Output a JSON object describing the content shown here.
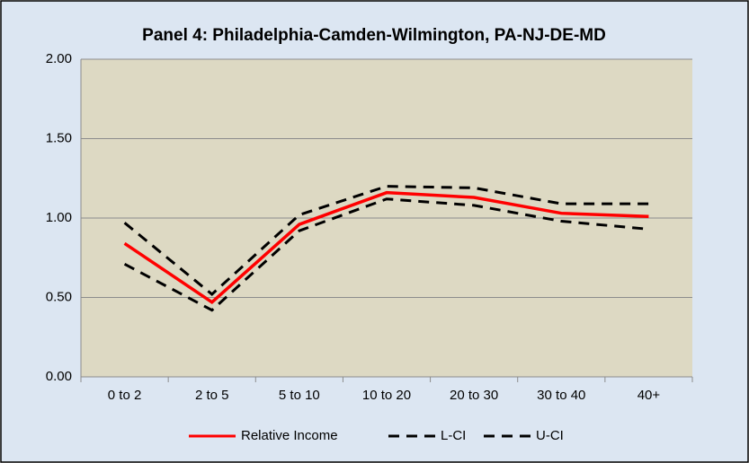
{
  "chart_data": {
    "type": "line",
    "title": "Panel 4: Philadelphia-Camden-Wilmington,  PA-NJ-DE-MD",
    "categories": [
      "0 to 2",
      "2 to 5",
      "5 to 10",
      "10 to 20",
      "20 to 30",
      "30 to 40",
      "40+"
    ],
    "series": [
      {
        "name": "Relative Income",
        "color": "#ff0000",
        "dash": false,
        "values": [
          0.84,
          0.47,
          0.96,
          1.16,
          1.13,
          1.03,
          1.01
        ]
      },
      {
        "name": "L-CI",
        "color": "#000000",
        "dash": true,
        "values": [
          0.71,
          0.42,
          0.92,
          1.12,
          1.08,
          0.98,
          0.93
        ]
      },
      {
        "name": "U-CI",
        "color": "#000000",
        "dash": true,
        "values": [
          0.97,
          0.52,
          1.02,
          1.2,
          1.19,
          1.09,
          1.09
        ]
      }
    ],
    "ylim": [
      0,
      2
    ],
    "yticks": [
      {
        "value": 0,
        "label": "0.00"
      },
      {
        "value": 0.5,
        "label": "0.50"
      },
      {
        "value": 1,
        "label": "1.00"
      },
      {
        "value": 1.5,
        "label": "1.50"
      },
      {
        "value": 2,
        "label": "2.00"
      }
    ],
    "grid": true,
    "legend": "bottom"
  }
}
